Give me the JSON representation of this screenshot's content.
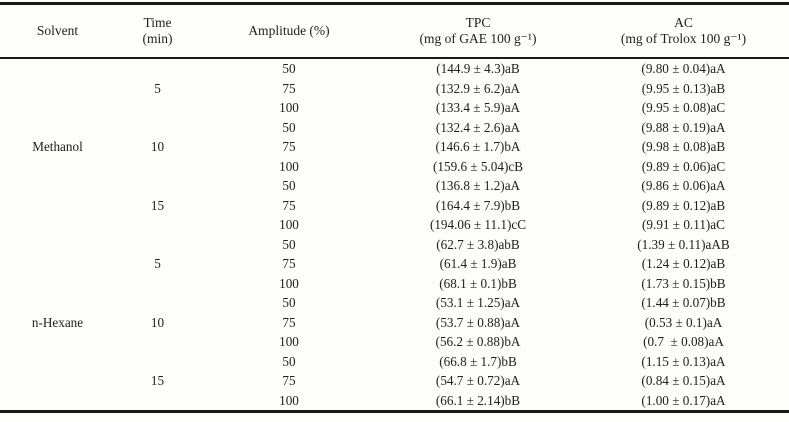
{
  "table": {
    "headers": {
      "solvent": "Solvent",
      "time_line1": "Time",
      "time_line2": "(min)",
      "amplitude": "Amplitude (%)",
      "tpc_line1": "TPC",
      "tpc_line2": "(mg of GAE 100 g⁻¹)",
      "ac_line1": "AC",
      "ac_line2": "(mg of Trolox 100 g⁻¹)"
    },
    "rows": [
      {
        "solvent": "",
        "time": "",
        "amplitude": "50",
        "tpc": "(144.9 ± 4.3)aB",
        "ac": "(9.80 ± 0.04)aA"
      },
      {
        "solvent": "",
        "time": "5",
        "amplitude": "75",
        "tpc": "(132.9 ± 6.2)aA",
        "ac": "(9.95 ± 0.13)aB"
      },
      {
        "solvent": "",
        "time": "",
        "amplitude": "100",
        "tpc": "(133.4 ± 5.9)aA",
        "ac": "(9.95 ± 0.08)aC"
      },
      {
        "solvent": "",
        "time": "",
        "amplitude": "50",
        "tpc": "(132.4 ± 2.6)aA",
        "ac": "(9.88 ± 0.19)aA"
      },
      {
        "solvent": "Methanol",
        "time": "10",
        "amplitude": "75",
        "tpc": "(146.6 ± 1.7)bA",
        "ac": "(9.98 ± 0.08)aB"
      },
      {
        "solvent": "",
        "time": "",
        "amplitude": "100",
        "tpc": "(159.6 ± 5.04)cB",
        "ac": "(9.89 ± 0.06)aC"
      },
      {
        "solvent": "",
        "time": "",
        "amplitude": "50",
        "tpc": "(136.8 ± 1.2)aA",
        "ac": "(9.86 ± 0.06)aA"
      },
      {
        "solvent": "",
        "time": "15",
        "amplitude": "75",
        "tpc": "(164.4 ± 7.9)bB",
        "ac": "(9.89 ± 0.12)aB"
      },
      {
        "solvent": "",
        "time": "",
        "amplitude": "100",
        "tpc": "(194.06 ± 11.1)cC",
        "ac": "(9.91 ± 0.11)aC"
      },
      {
        "solvent": "",
        "time": "",
        "amplitude": "50",
        "tpc": "(62.7 ± 3.8)abB",
        "ac": "(1.39 ± 0.11)aAB"
      },
      {
        "solvent": "",
        "time": "5",
        "amplitude": "75",
        "tpc": "(61.4 ± 1.9)aB",
        "ac": "(1.24 ± 0.12)aB"
      },
      {
        "solvent": "",
        "time": "",
        "amplitude": "100",
        "tpc": "(68.1 ± 0.1)bB",
        "ac": "(1.73 ± 0.15)bB"
      },
      {
        "solvent": "",
        "time": "",
        "amplitude": "50",
        "tpc": "(53.1 ± 1.25)aA",
        "ac": "(1.44 ± 0.07)bB"
      },
      {
        "solvent": "n-Hexane",
        "time": "10",
        "amplitude": "75",
        "tpc": "(53.7 ± 0.88)aA",
        "ac": "(0.53 ± 0.1)aA"
      },
      {
        "solvent": "",
        "time": "",
        "amplitude": "100",
        "tpc": "(56.2 ± 0.88)bA",
        "ac": "(0.7  ± 0.08)aA"
      },
      {
        "solvent": "",
        "time": "",
        "amplitude": "50",
        "tpc": "(66.8 ± 1.7)bB",
        "ac": "(1.15 ± 0.13)aA"
      },
      {
        "solvent": "",
        "time": "15",
        "amplitude": "75",
        "tpc": "(54.7 ± 0.72)aA",
        "ac": "(0.84 ± 0.15)aA"
      },
      {
        "solvent": "",
        "time": "",
        "amplitude": "100",
        "tpc": "(66.1 ± 2.14)bB",
        "ac": "(1.00 ± 0.17)aA"
      }
    ]
  },
  "colors": {
    "rule": "#191919",
    "text": "#1e1e1e",
    "background": "#fdfdfc"
  }
}
